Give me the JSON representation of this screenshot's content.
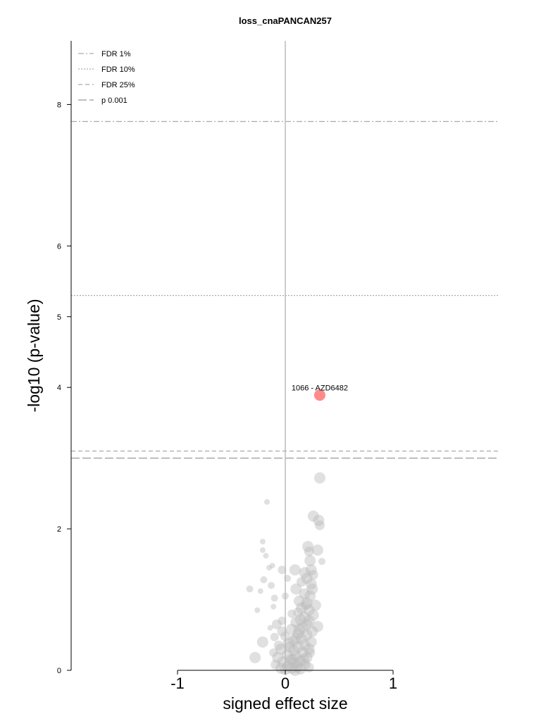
{
  "chart_data": {
    "type": "scatter",
    "title": "loss_cnaPANCAN257",
    "xlabel": "signed effect size",
    "ylabel": "-log10 (p-value)",
    "xlim": [
      -1.0,
      1.0
    ],
    "ylim": [
      0,
      8.9
    ],
    "x_ticks": [
      {
        "value": -1,
        "label": "-1"
      },
      {
        "value": 0,
        "label": "0"
      },
      {
        "value": 1,
        "label": "1"
      }
    ],
    "y_ticks": [
      {
        "value": 0,
        "label": "0"
      },
      {
        "value": 2,
        "label": "2"
      },
      {
        "value": 4,
        "label": "4"
      },
      {
        "value": 5,
        "label": "5"
      },
      {
        "value": 6,
        "label": "6"
      },
      {
        "value": 8,
        "label": "8"
      }
    ],
    "zero_line_x": 0,
    "legend_position": "top-left",
    "thresholds": [
      {
        "label": "FDR 1%",
        "y": 7.76,
        "style": "dashdot",
        "color": "#aaaaaa"
      },
      {
        "label": "FDR 10%",
        "y": 5.3,
        "style": "dotted",
        "color": "#aaaaaa"
      },
      {
        "label": "FDR 25%",
        "y": 3.1,
        "style": "dashed",
        "color": "#aaaaaa"
      },
      {
        "label": "p 0.001",
        "y": 3.0,
        "style": "longdash",
        "color": "#999999"
      }
    ],
    "highlight": {
      "x": 0.32,
      "y": 3.89,
      "label": "1066 - AZD6482",
      "color": "#ff8a8a",
      "size": 8
    },
    "point_color": "#bbbbbb",
    "points": [
      {
        "x": 0.32,
        "y": 2.72,
        "s": 8
      },
      {
        "x": -0.17,
        "y": 2.38,
        "s": 4
      },
      {
        "x": 0.26,
        "y": 2.18,
        "s": 8
      },
      {
        "x": 0.31,
        "y": 2.12,
        "s": 8
      },
      {
        "x": 0.32,
        "y": 2.05,
        "s": 7
      },
      {
        "x": -0.21,
        "y": 1.82,
        "s": 4
      },
      {
        "x": 0.21,
        "y": 1.75,
        "s": 8
      },
      {
        "x": -0.21,
        "y": 1.7,
        "s": 4
      },
      {
        "x": 0.3,
        "y": 1.7,
        "s": 8
      },
      {
        "x": 0.22,
        "y": 1.68,
        "s": 7
      },
      {
        "x": -0.18,
        "y": 1.62,
        "s": 4
      },
      {
        "x": 0.23,
        "y": 1.55,
        "s": 8
      },
      {
        "x": 0.34,
        "y": 1.54,
        "s": 5
      },
      {
        "x": -0.12,
        "y": 1.48,
        "s": 4
      },
      {
        "x": -0.15,
        "y": 1.45,
        "s": 4
      },
      {
        "x": -0.03,
        "y": 1.42,
        "s": 6
      },
      {
        "x": 0.09,
        "y": 1.42,
        "s": 8
      },
      {
        "x": 0.24,
        "y": 1.42,
        "s": 8
      },
      {
        "x": 0.18,
        "y": 1.38,
        "s": 8
      },
      {
        "x": 0.26,
        "y": 1.35,
        "s": 7
      },
      {
        "x": 0.2,
        "y": 1.3,
        "s": 8
      },
      {
        "x": -0.2,
        "y": 1.28,
        "s": 5
      },
      {
        "x": 0.02,
        "y": 1.3,
        "s": 5
      },
      {
        "x": 0.15,
        "y": 1.25,
        "s": 7
      },
      {
        "x": 0.24,
        "y": 1.22,
        "s": 8
      },
      {
        "x": -0.13,
        "y": 1.2,
        "s": 5
      },
      {
        "x": -0.33,
        "y": 1.15,
        "s": 5
      },
      {
        "x": 0.1,
        "y": 1.15,
        "s": 8
      },
      {
        "x": 0.25,
        "y": 1.15,
        "s": 8
      },
      {
        "x": -0.23,
        "y": 1.12,
        "s": 4
      },
      {
        "x": 0.18,
        "y": 1.08,
        "s": 8
      },
      {
        "x": 0.23,
        "y": 1.05,
        "s": 8
      },
      {
        "x": 0.0,
        "y": 1.05,
        "s": 5
      },
      {
        "x": -0.1,
        "y": 1.02,
        "s": 5
      },
      {
        "x": 0.13,
        "y": 0.98,
        "s": 8
      },
      {
        "x": 0.2,
        "y": 0.95,
        "s": 8
      },
      {
        "x": 0.28,
        "y": 0.92,
        "s": 8
      },
      {
        "x": -0.11,
        "y": 0.9,
        "s": 4
      },
      {
        "x": 0.15,
        "y": 0.88,
        "s": 8
      },
      {
        "x": -0.26,
        "y": 0.85,
        "s": 4
      },
      {
        "x": 0.22,
        "y": 0.85,
        "s": 8
      },
      {
        "x": 0.12,
        "y": 0.82,
        "s": 7
      },
      {
        "x": 0.06,
        "y": 0.8,
        "s": 6
      },
      {
        "x": 0.26,
        "y": 0.78,
        "s": 8
      },
      {
        "x": 0.18,
        "y": 0.75,
        "s": 8
      },
      {
        "x": 0.14,
        "y": 0.72,
        "s": 8
      },
      {
        "x": 0.22,
        "y": 0.7,
        "s": 8
      },
      {
        "x": -0.03,
        "y": 0.7,
        "s": 6
      },
      {
        "x": 0.1,
        "y": 0.68,
        "s": 8
      },
      {
        "x": 0.2,
        "y": 0.65,
        "s": 8
      },
      {
        "x": -0.08,
        "y": 0.65,
        "s": 7
      },
      {
        "x": 0.3,
        "y": 0.62,
        "s": 8
      },
      {
        "x": -0.14,
        "y": 0.6,
        "s": 4
      },
      {
        "x": 0.16,
        "y": 0.6,
        "s": 8
      },
      {
        "x": 0.06,
        "y": 0.58,
        "s": 8
      },
      {
        "x": -0.03,
        "y": 0.55,
        "s": 7
      },
      {
        "x": 0.25,
        "y": 0.55,
        "s": 8
      },
      {
        "x": 0.12,
        "y": 0.52,
        "s": 8
      },
      {
        "x": 0.2,
        "y": 0.5,
        "s": 8
      },
      {
        "x": 0.0,
        "y": 0.48,
        "s": 7
      },
      {
        "x": -0.1,
        "y": 0.47,
        "s": 6
      },
      {
        "x": 0.15,
        "y": 0.45,
        "s": 8
      },
      {
        "x": 0.08,
        "y": 0.42,
        "s": 8
      },
      {
        "x": 0.24,
        "y": 0.4,
        "s": 8
      },
      {
        "x": -0.21,
        "y": 0.4,
        "s": 8
      },
      {
        "x": 0.03,
        "y": 0.38,
        "s": 8
      },
      {
        "x": 0.18,
        "y": 0.36,
        "s": 8
      },
      {
        "x": -0.06,
        "y": 0.35,
        "s": 7
      },
      {
        "x": 0.12,
        "y": 0.33,
        "s": 8
      },
      {
        "x": 0.22,
        "y": 0.3,
        "s": 8
      },
      {
        "x": -0.04,
        "y": 0.3,
        "s": 8
      },
      {
        "x": 0.08,
        "y": 0.28,
        "s": 8
      },
      {
        "x": 0.16,
        "y": 0.25,
        "s": 8
      },
      {
        "x": -0.11,
        "y": 0.25,
        "s": 6
      },
      {
        "x": 0.02,
        "y": 0.22,
        "s": 8
      },
      {
        "x": 0.1,
        "y": 0.2,
        "s": 8
      },
      {
        "x": 0.2,
        "y": 0.18,
        "s": 8
      },
      {
        "x": -0.28,
        "y": 0.18,
        "s": 8
      },
      {
        "x": -0.07,
        "y": 0.18,
        "s": 8
      },
      {
        "x": 0.05,
        "y": 0.15,
        "s": 8
      },
      {
        "x": 0.14,
        "y": 0.13,
        "s": 8
      },
      {
        "x": -0.02,
        "y": 0.12,
        "s": 8
      },
      {
        "x": 0.08,
        "y": 0.1,
        "s": 8
      },
      {
        "x": 0.18,
        "y": 0.08,
        "s": 8
      },
      {
        "x": -0.09,
        "y": 0.08,
        "s": 7
      },
      {
        "x": 0.02,
        "y": 0.06,
        "s": 8
      },
      {
        "x": 0.11,
        "y": 0.05,
        "s": 8
      },
      {
        "x": 0.06,
        "y": 0.03,
        "s": 8
      },
      {
        "x": -0.04,
        "y": 0.03,
        "s": 8
      },
      {
        "x": 0.14,
        "y": 0.02,
        "s": 8
      },
      {
        "x": 0.22,
        "y": 0.04,
        "s": 7
      },
      {
        "x": 0.0,
        "y": 0.01,
        "s": 8
      },
      {
        "x": 0.09,
        "y": 0.0,
        "s": 8
      },
      {
        "x": 0.17,
        "y": 0.15,
        "s": 8
      },
      {
        "x": 0.04,
        "y": 0.33,
        "s": 8
      },
      {
        "x": 0.13,
        "y": 0.58,
        "s": 8
      },
      {
        "x": 0.19,
        "y": 0.92,
        "s": 7
      },
      {
        "x": 0.23,
        "y": 0.25,
        "s": 7
      },
      {
        "x": 0.1,
        "y": 0.45,
        "s": 8
      },
      {
        "x": 0.07,
        "y": 0.15,
        "s": 8
      }
    ]
  }
}
